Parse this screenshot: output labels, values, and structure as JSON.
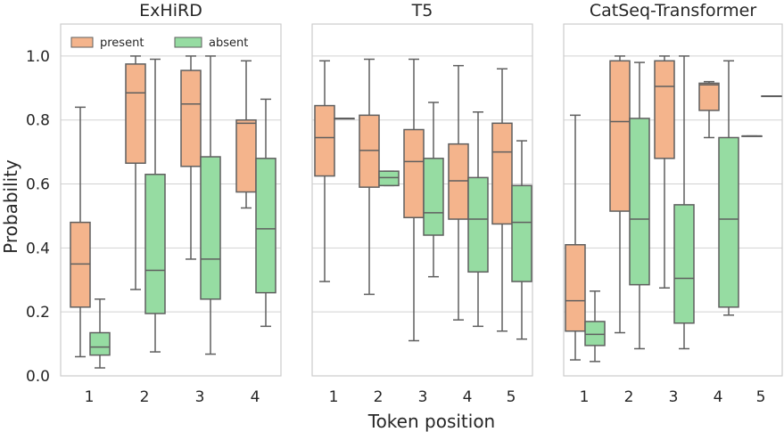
{
  "figure": {
    "ylabel": "Probability",
    "xlabel": "Token position",
    "yticks": [
      "0.0",
      "0.2",
      "0.4",
      "0.6",
      "0.8",
      "1.0"
    ]
  },
  "legend": {
    "present": "present",
    "absent": "absent",
    "placement": "top-left"
  },
  "colors": {
    "present": "#f4b48c",
    "absent": "#96dca2",
    "edge": "#5f5f5f",
    "grid": "#d2d2d2",
    "frame": "#cccccc"
  },
  "chart_data": [
    {
      "type": "box",
      "title": "ExHiRD",
      "categories": [
        "1",
        "2",
        "3",
        "4"
      ],
      "ylim": [
        0,
        1.1
      ],
      "grid": true,
      "series": [
        {
          "name": "present",
          "boxes": [
            {
              "whislo": 0.06,
              "q1": 0.215,
              "med": 0.35,
              "q3": 0.48,
              "whishi": 0.84
            },
            {
              "whislo": 0.27,
              "q1": 0.665,
              "med": 0.885,
              "q3": 0.975,
              "whishi": 1.0
            },
            {
              "whislo": 0.365,
              "q1": 0.655,
              "med": 0.85,
              "q3": 0.955,
              "whishi": 1.0
            },
            {
              "whislo": 0.525,
              "q1": 0.575,
              "med": 0.79,
              "q3": 0.8,
              "whishi": 0.985
            }
          ]
        },
        {
          "name": "absent",
          "boxes": [
            {
              "whislo": 0.025,
              "q1": 0.065,
              "med": 0.09,
              "q3": 0.135,
              "whishi": 0.24
            },
            {
              "whislo": 0.075,
              "q1": 0.195,
              "med": 0.33,
              "q3": 0.63,
              "whishi": 0.99
            },
            {
              "whislo": 0.068,
              "q1": 0.24,
              "med": 0.365,
              "q3": 0.685,
              "whishi": 1.0
            },
            {
              "whislo": 0.155,
              "q1": 0.26,
              "med": 0.46,
              "q3": 0.68,
              "whishi": 0.865
            }
          ]
        }
      ]
    },
    {
      "type": "box",
      "title": "T5",
      "categories": [
        "1",
        "2",
        "3",
        "4",
        "5"
      ],
      "ylim": [
        0,
        1.1
      ],
      "grid": true,
      "series": [
        {
          "name": "present",
          "boxes": [
            {
              "whislo": 0.295,
              "q1": 0.625,
              "med": 0.745,
              "q3": 0.845,
              "whishi": 0.985
            },
            {
              "whislo": 0.255,
              "q1": 0.59,
              "med": 0.705,
              "q3": 0.815,
              "whishi": 0.99
            },
            {
              "whislo": 0.11,
              "q1": 0.495,
              "med": 0.67,
              "q3": 0.77,
              "whishi": 0.99
            },
            {
              "whislo": 0.175,
              "q1": 0.49,
              "med": 0.61,
              "q3": 0.725,
              "whishi": 0.97
            },
            {
              "whislo": 0.14,
              "q1": 0.475,
              "med": 0.7,
              "q3": 0.79,
              "whishi": 0.96
            }
          ]
        },
        {
          "name": "absent",
          "boxes": [
            {
              "whislo": 0.805,
              "q1": 0.805,
              "med": 0.805,
              "q3": 0.805,
              "whishi": 0.805
            },
            {
              "whislo": 0.595,
              "q1": 0.595,
              "med": 0.62,
              "q3": 0.64,
              "whishi": 0.64
            },
            {
              "whislo": 0.31,
              "q1": 0.44,
              "med": 0.51,
              "q3": 0.68,
              "whishi": 0.855
            },
            {
              "whislo": 0.155,
              "q1": 0.325,
              "med": 0.49,
              "q3": 0.62,
              "whishi": 0.825
            },
            {
              "whislo": 0.115,
              "q1": 0.295,
              "med": 0.48,
              "q3": 0.595,
              "whishi": 0.735
            }
          ]
        }
      ]
    },
    {
      "type": "box",
      "title": "CatSeq-Transformer",
      "categories": [
        "1",
        "2",
        "3",
        "4",
        "5"
      ],
      "ylim": [
        0,
        1.1
      ],
      "grid": true,
      "series": [
        {
          "name": "present",
          "boxes": [
            {
              "whislo": 0.05,
              "q1": 0.14,
              "med": 0.235,
              "q3": 0.41,
              "whishi": 0.815
            },
            {
              "whislo": 0.135,
              "q1": 0.515,
              "med": 0.795,
              "q3": 0.985,
              "whishi": 1.0
            },
            {
              "whislo": 0.275,
              "q1": 0.68,
              "med": 0.905,
              "q3": 0.985,
              "whishi": 1.0
            },
            {
              "whislo": 0.745,
              "q1": 0.83,
              "med": 0.91,
              "q3": 0.915,
              "whishi": 0.92
            },
            {
              "whislo": 0.75,
              "q1": 0.75,
              "med": 0.75,
              "q3": 0.75,
              "whishi": 0.75
            }
          ]
        },
        {
          "name": "absent",
          "boxes": [
            {
              "whislo": 0.045,
              "q1": 0.095,
              "med": 0.13,
              "q3": 0.17,
              "whishi": 0.265
            },
            {
              "whislo": 0.085,
              "q1": 0.285,
              "med": 0.49,
              "q3": 0.805,
              "whishi": 0.98
            },
            {
              "whislo": 0.085,
              "q1": 0.165,
              "med": 0.305,
              "q3": 0.535,
              "whishi": 1.0
            },
            {
              "whislo": 0.19,
              "q1": 0.215,
              "med": 0.49,
              "q3": 0.745,
              "whishi": 0.985
            },
            {
              "whislo": 0.875,
              "q1": 0.875,
              "med": 0.875,
              "q3": 0.875,
              "whishi": 0.875
            }
          ]
        }
      ]
    }
  ]
}
